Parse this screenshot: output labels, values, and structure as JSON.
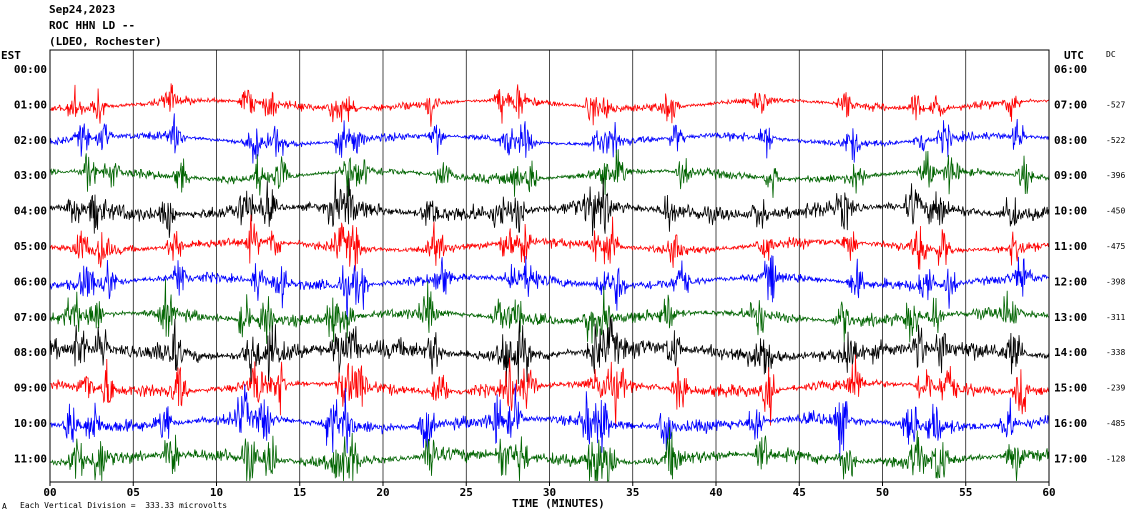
{
  "header": {
    "date": "Sep24,2023",
    "station": "ROC HHN LD --",
    "network": "(LDEO, Rochester)"
  },
  "left_tz": "EST",
  "right_tz": "UTC",
  "dc_label": "DC",
  "footer": {
    "scale_note": "Each Vertical Division =  333.33 microvolts",
    "corner_mark": "A"
  },
  "chart_data": {
    "type": "line",
    "title": "Sep24,2023 ROC HHN LD -- (LDEO, Rochester)",
    "xlabel": "TIME (MINUTES)",
    "ylabel": "",
    "xlim": [
      0,
      60
    ],
    "x_ticks": [
      "00",
      "05",
      "10",
      "15",
      "20",
      "25",
      "30",
      "35",
      "40",
      "45",
      "50",
      "55",
      "60"
    ],
    "grid": "vertical lines every 5 minutes",
    "vertical_division_microvolts": 333.33,
    "colors": [
      "#ff0000",
      "#0000ff",
      "#006400",
      "#000000"
    ],
    "traces": [
      {
        "est": "00:00",
        "utc": "06:00",
        "dc": "",
        "color": "#ff0000"
      },
      {
        "est": "01:00",
        "utc": "07:00",
        "dc": "-527",
        "color": "#ff0000"
      },
      {
        "est": "02:00",
        "utc": "08:00",
        "dc": "-522",
        "color": "#0000ff"
      },
      {
        "est": "03:00",
        "utc": "09:00",
        "dc": "-396",
        "color": "#006400"
      },
      {
        "est": "04:00",
        "utc": "10:00",
        "dc": "-450",
        "color": "#000000"
      },
      {
        "est": "05:00",
        "utc": "11:00",
        "dc": "-475",
        "color": "#ff0000"
      },
      {
        "est": "06:00",
        "utc": "12:00",
        "dc": "-398",
        "color": "#0000ff"
      },
      {
        "est": "07:00",
        "utc": "13:00",
        "dc": "-311",
        "color": "#006400"
      },
      {
        "est": "08:00",
        "utc": "14:00",
        "dc": "-338",
        "color": "#000000"
      },
      {
        "est": "09:00",
        "utc": "15:00",
        "dc": "-239",
        "color": "#ff0000"
      },
      {
        "est": "10:00",
        "utc": "16:00",
        "dc": "-485",
        "color": "#0000ff"
      },
      {
        "est": "11:00",
        "utc": "17:00",
        "dc": "-128",
        "color": "#006400"
      }
    ]
  }
}
